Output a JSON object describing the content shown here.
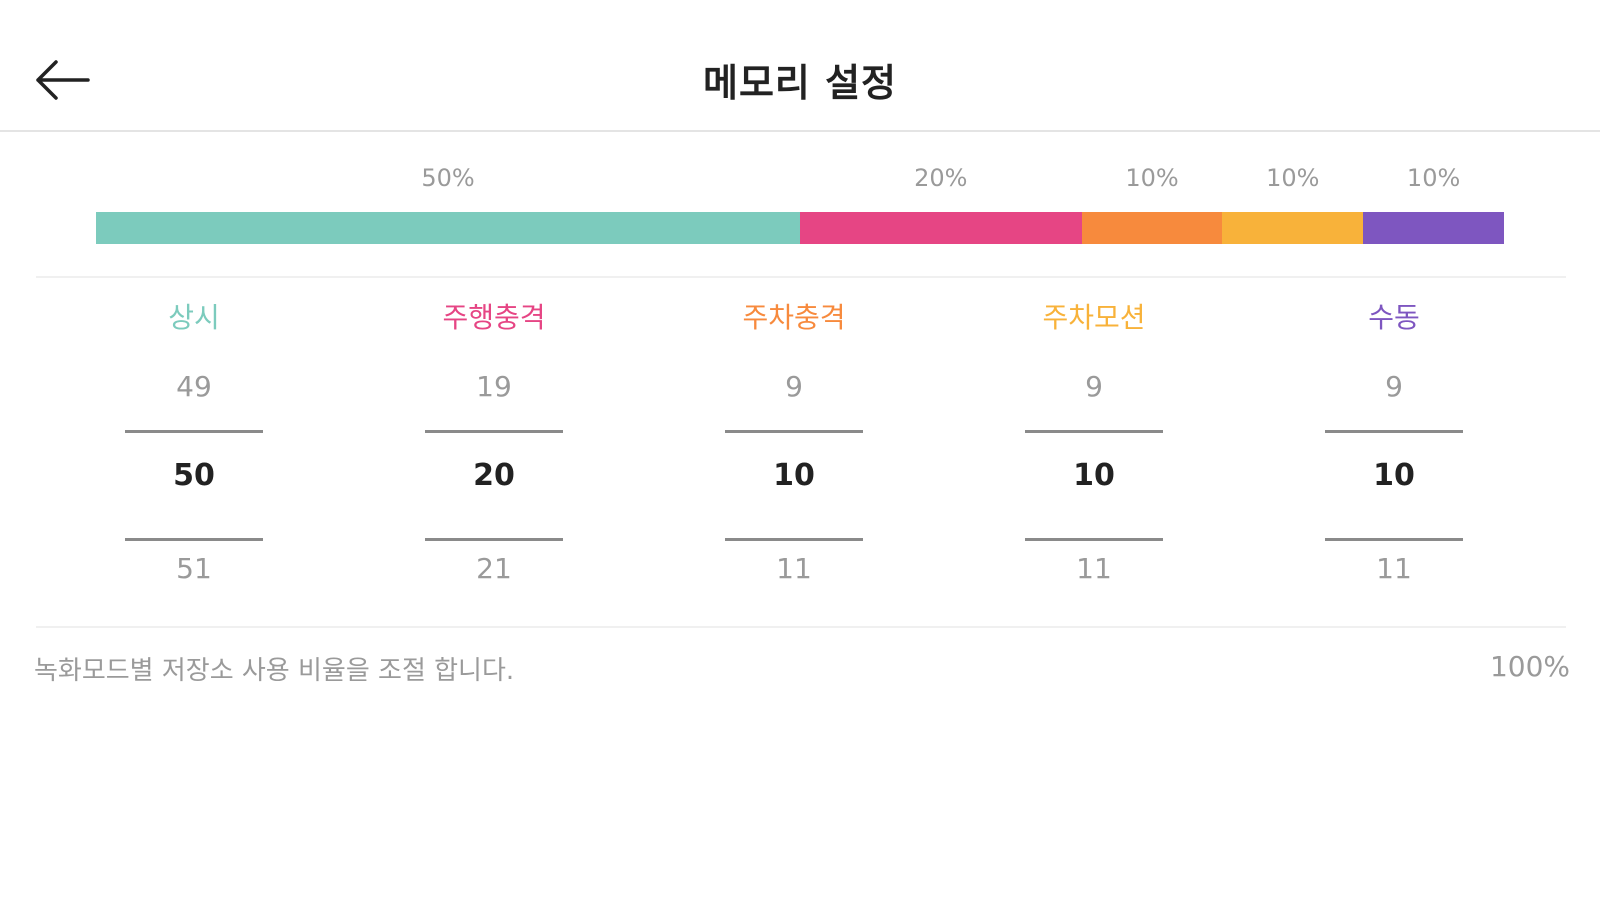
{
  "header": {
    "title": "메모리 설정",
    "back_icon": "arrow-left-icon"
  },
  "segments": [
    {
      "key": "always",
      "label": "상시",
      "percent": 50,
      "percent_label": "50%",
      "color": "#7ccbbd",
      "prev": "49",
      "current": "50",
      "next": "51"
    },
    {
      "key": "driving-impact",
      "label": "주행충격",
      "percent": 20,
      "percent_label": "20%",
      "color": "#e64584",
      "prev": "19",
      "current": "20",
      "next": "21"
    },
    {
      "key": "parking-impact",
      "label": "주차충격",
      "percent": 10,
      "percent_label": "10%",
      "color": "#f78a3d",
      "prev": "9",
      "current": "10",
      "next": "11"
    },
    {
      "key": "parking-motion",
      "label": "주차모션",
      "percent": 10,
      "percent_label": "10%",
      "color": "#f8b23a",
      "prev": "9",
      "current": "10",
      "next": "11"
    },
    {
      "key": "manual",
      "label": "수동",
      "percent": 10,
      "percent_label": "10%",
      "color": "#7e56c0",
      "prev": "9",
      "current": "10",
      "next": "11"
    }
  ],
  "footer": {
    "description": "녹화모드별 저장소 사용 비율을 조절 합니다.",
    "total": "100%"
  }
}
